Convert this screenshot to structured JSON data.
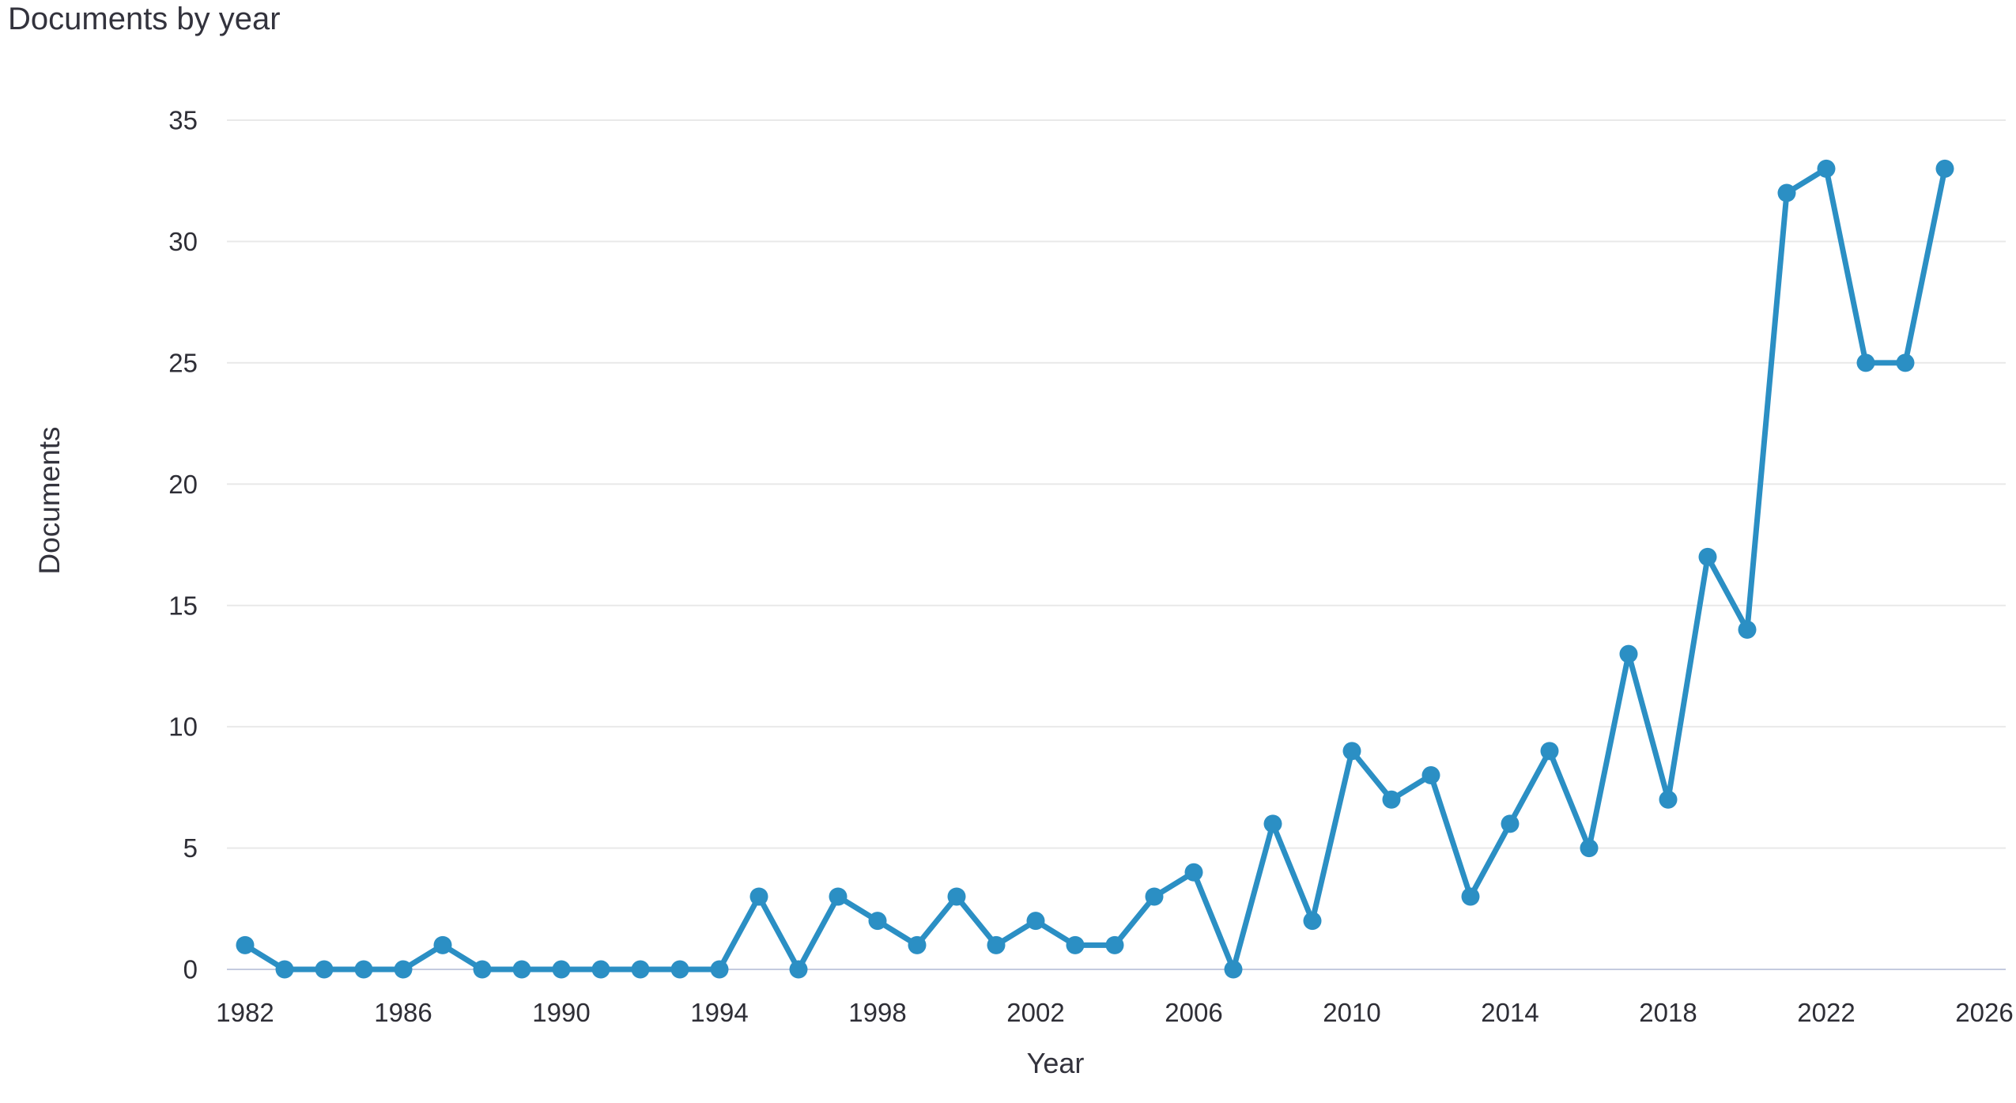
{
  "chart_data": {
    "type": "line",
    "title": "Documents by year",
    "xlabel": "Year",
    "ylabel": "Documents",
    "x": [
      1982,
      1983,
      1984,
      1985,
      1986,
      1987,
      1988,
      1989,
      1990,
      1991,
      1992,
      1993,
      1994,
      1995,
      1996,
      1997,
      1998,
      1999,
      2000,
      2001,
      2002,
      2003,
      2004,
      2005,
      2006,
      2007,
      2008,
      2009,
      2010,
      2011,
      2012,
      2013,
      2014,
      2015,
      2016,
      2017,
      2018,
      2019,
      2020,
      2021,
      2022,
      2023,
      2024,
      2025
    ],
    "values": [
      1,
      0,
      0,
      0,
      0,
      1,
      0,
      0,
      0,
      0,
      0,
      0,
      0,
      3,
      0,
      3,
      2,
      1,
      3,
      1,
      2,
      1,
      1,
      3,
      4,
      0,
      6,
      2,
      9,
      7,
      8,
      3,
      6,
      9,
      5,
      13,
      7,
      17,
      14,
      32,
      33,
      25,
      25,
      33
    ],
    "xlim": [
      1982,
      2026
    ],
    "ylim": [
      0,
      35
    ],
    "x_ticks": [
      1982,
      1986,
      1990,
      1994,
      1998,
      2002,
      2006,
      2010,
      2014,
      2018,
      2022,
      2026
    ],
    "y_ticks": [
      0,
      5,
      10,
      15,
      20,
      25,
      30,
      35
    ],
    "grid": "horizontal",
    "legend": "none",
    "series_name": "Documents",
    "colors": {
      "line": "#2b8fc4",
      "marker": "#2b8fc4",
      "gridline": "#e9e9e9",
      "zero_axis_line": "#c4cbdf",
      "text": "#33333d"
    }
  }
}
